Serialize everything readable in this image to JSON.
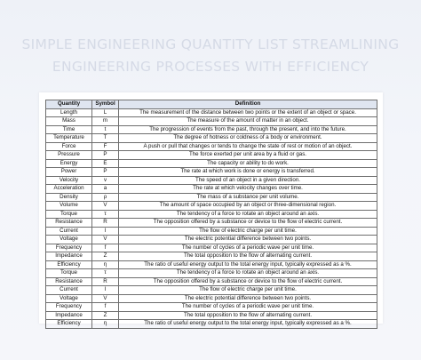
{
  "title_lines": [
    "SIMPLE ENGINEERING QUANTITY LIST STREAMLINING",
    "ENGINEERING PROCESSES WITH EFFICIENCY"
  ],
  "headers": [
    "Quantity",
    "Symbol",
    "Definition"
  ],
  "rows": [
    [
      "Length",
      "L",
      "The measurement of the distance between two points or the extent of an object or space."
    ],
    [
      "Mass",
      "m",
      "The measure of the amount of matter in an object."
    ],
    [
      "Time",
      "t",
      "The progression of events from the past, through the present, and into the future."
    ],
    [
      "Temperature",
      "T",
      "The degree of hotness or coldness of a body or environment."
    ],
    [
      "Force",
      "F",
      "A push or pull that changes or tends to change the state of rest or motion of an object."
    ],
    [
      "Pressure",
      "P",
      "The force exerted per unit area by a fluid or gas."
    ],
    [
      "Energy",
      "E",
      "The capacity or ability to do work."
    ],
    [
      "Power",
      "P",
      "The rate at which work is done or energy is transferred."
    ],
    [
      "Velocity",
      "v",
      "The speed of an object in a given direction."
    ],
    [
      "Acceleration",
      "a",
      "The rate at which velocity changes over time."
    ],
    [
      "Density",
      "ρ",
      "The mass of a substance per unit volume."
    ],
    [
      "Volume",
      "V",
      "The amount of space occupied by an object or three-dimensional region."
    ],
    [
      "Torque",
      "τ",
      "The tendency of a force to rotate an object around an axis."
    ],
    [
      "Resistance",
      "R",
      "The opposition offered by a substance or device to the flow of electric current."
    ],
    [
      "Current",
      "I",
      "The flow of electric charge per unit time."
    ],
    [
      "Voltage",
      "V",
      "The electric potential difference between two points."
    ],
    [
      "Frequency",
      "f",
      "The number of cycles of a periodic wave per unit time."
    ],
    [
      "Impedance",
      "Z",
      "The total opposition to the flow of alternating current."
    ],
    [
      "Efficiency",
      "η",
      "The ratio of useful energy output to the total energy input, typically expressed as a %."
    ],
    [
      "Torque",
      "τ",
      "The tendency of a force to rotate an object around an axis."
    ],
    [
      "Resistance",
      "R",
      "The opposition offered by a substance or device to the flow of electric current."
    ],
    [
      "Current",
      "I",
      "The flow of electric charge per unit time."
    ],
    [
      "Voltage",
      "V",
      "The electric potential difference between two points."
    ],
    [
      "Frequency",
      "f",
      "The number of cycles of a periodic wave per unit time."
    ],
    [
      "Impedance",
      "Z",
      "The total opposition to the flow of alternating current."
    ],
    [
      "Efficiency",
      "η",
      "The ratio of useful energy output to the total energy input, typically expressed as a %."
    ]
  ]
}
